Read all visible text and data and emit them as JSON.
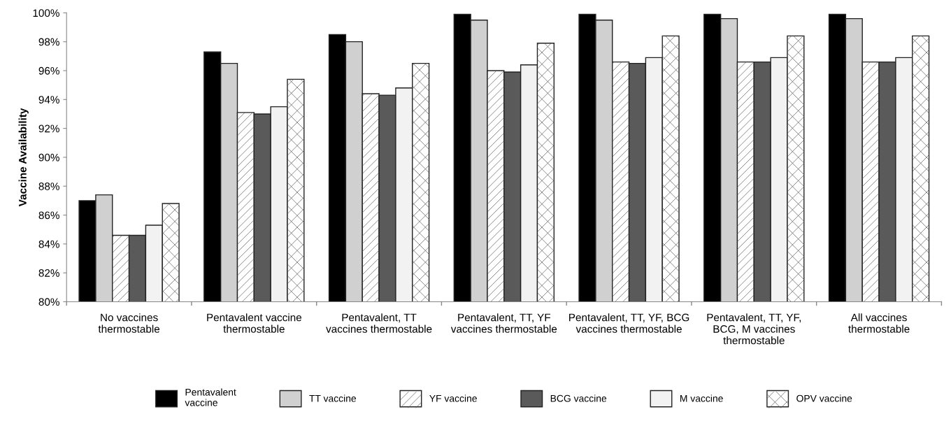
{
  "chart_data": {
    "type": "bar",
    "ylabel": "Vaccine Availability",
    "categories": [
      "No vaccines\nthermostable",
      "Pentavalent vaccine\nthermostable",
      "Pentavalent, TT\nvaccines thermostable",
      "Pentavalent, TT, YF\nvaccines thermostable",
      "Pentavalent, TT, YF, BCG\nvaccines thermostable",
      "Pentavalent, TT, YF,\nBCG, M vaccines\nthermostable",
      "All vaccines\nthermostable"
    ],
    "series": [
      {
        "name": "Pentavalent\nvaccine",
        "color": "#000000",
        "values": [
          87.0,
          97.3,
          98.5,
          99.9,
          99.9,
          99.9,
          99.9
        ]
      },
      {
        "name": "TT vaccine",
        "color": "#d0d0d0",
        "values": [
          87.4,
          96.5,
          98.0,
          99.5,
          99.5,
          99.6,
          99.6
        ]
      },
      {
        "name": "YF vaccine",
        "color": "#ffffff",
        "values": [
          84.6,
          93.1,
          94.4,
          96.0,
          96.6,
          96.6,
          96.6
        ]
      },
      {
        "name": "BCG vaccine",
        "color": "#5a5a5a",
        "values": [
          84.6,
          93.0,
          94.3,
          95.9,
          96.5,
          96.6,
          96.6
        ]
      },
      {
        "name": "M vaccine",
        "color": "#f2f2f2",
        "values": [
          85.3,
          93.5,
          94.8,
          96.4,
          96.9,
          96.9,
          96.9
        ]
      },
      {
        "name": "OPV vaccine",
        "color": "#ffffff",
        "values": [
          86.8,
          95.4,
          96.5,
          97.9,
          98.4,
          98.4,
          98.4
        ]
      }
    ],
    "ylim": [
      80,
      100
    ],
    "yticks": [
      {
        "value": 80,
        "label": "80%"
      },
      {
        "value": 82,
        "label": "82%"
      },
      {
        "value": 84,
        "label": "84%"
      },
      {
        "value": 86,
        "label": "86%"
      },
      {
        "value": 88,
        "label": "88%"
      },
      {
        "value": 90,
        "label": "90%"
      },
      {
        "value": 92,
        "label": "92%"
      },
      {
        "value": 94,
        "label": "94%"
      },
      {
        "value": 96,
        "label": "96%"
      },
      {
        "value": 98,
        "label": "98%"
      },
      {
        "value": 100,
        "label": "100%"
      }
    ],
    "grid": false,
    "legend": "bottom"
  }
}
